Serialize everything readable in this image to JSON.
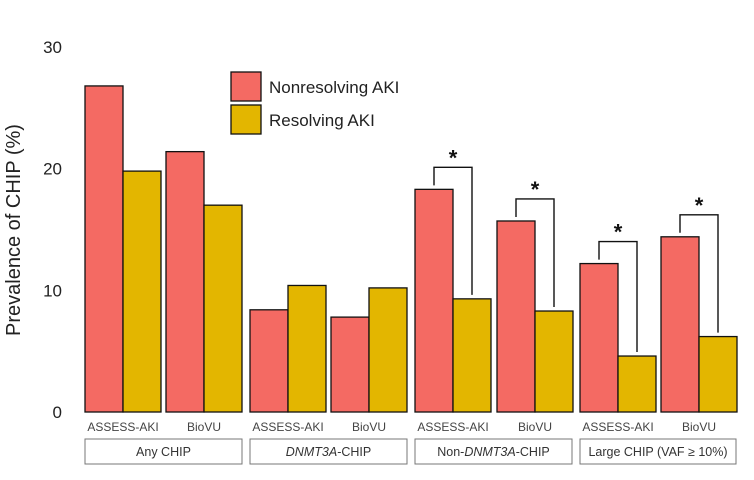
{
  "chart_data": {
    "type": "bar",
    "ylabel": "Prevalence of CHIP (%)",
    "ylim": [
      0,
      30
    ],
    "yticks": [
      0,
      10,
      20,
      30
    ],
    "legend_position": "top-center",
    "series": [
      {
        "name": "Nonresolving AKI",
        "color": "#F46A63"
      },
      {
        "name": "Resolving AKI",
        "color": "#E3B600"
      }
    ],
    "groups": [
      {
        "label_pre": "",
        "label_italic": "",
        "label_post": "Any CHIP",
        "cohorts": [
          {
            "label": "ASSESS-AKI",
            "values": [
              26.8,
              19.8
            ],
            "sig": ""
          },
          {
            "label": "BioVU",
            "values": [
              21.4,
              17.0
            ],
            "sig": ""
          }
        ]
      },
      {
        "label_pre": "",
        "label_italic": "DNMT3A",
        "label_post": "-CHIP",
        "cohorts": [
          {
            "label": "ASSESS-AKI",
            "values": [
              8.4,
              10.4
            ],
            "sig": ""
          },
          {
            "label": "BioVU",
            "values": [
              7.8,
              10.2
            ],
            "sig": ""
          }
        ]
      },
      {
        "label_pre": "Non-",
        "label_italic": "DNMT3A",
        "label_post": "-CHIP",
        "cohorts": [
          {
            "label": "ASSESS-AKI",
            "values": [
              18.3,
              9.3
            ],
            "sig": "*"
          },
          {
            "label": "BioVU",
            "values": [
              15.7,
              8.3
            ],
            "sig": "*"
          }
        ]
      },
      {
        "label_pre": "",
        "label_italic": "",
        "label_post": "Large CHIP (VAF ≥ 10%)",
        "cohorts": [
          {
            "label": "ASSESS-AKI",
            "values": [
              12.2,
              4.6
            ],
            "sig": "*"
          },
          {
            "label": "BioVU",
            "values": [
              14.4,
              6.2
            ],
            "sig": "*"
          }
        ]
      }
    ]
  }
}
